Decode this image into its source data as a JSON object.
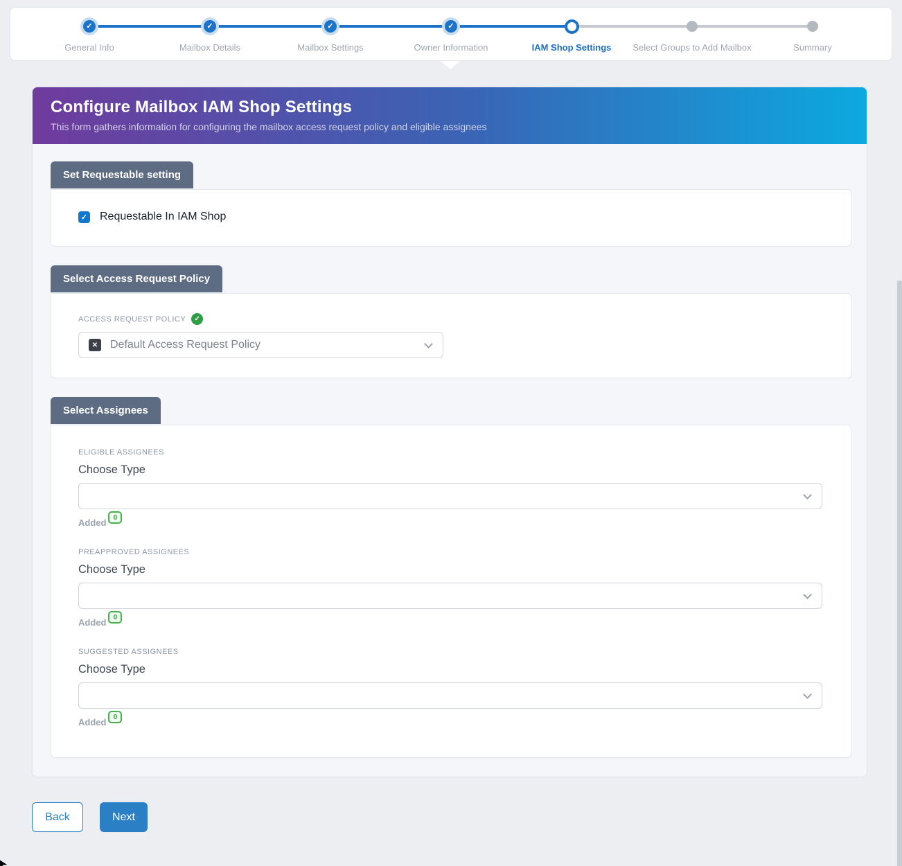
{
  "stepper": {
    "steps": [
      {
        "label": "General Info",
        "state": "completed"
      },
      {
        "label": "Mailbox Details",
        "state": "completed"
      },
      {
        "label": "Mailbox Settings",
        "state": "completed"
      },
      {
        "label": "Owner Information",
        "state": "completed"
      },
      {
        "label": "IAM Shop Settings",
        "state": "active"
      },
      {
        "label": "Select Groups to Add Mailbox",
        "state": "upcoming"
      },
      {
        "label": "Summary",
        "state": "upcoming"
      }
    ],
    "check_glyph": "✓"
  },
  "header": {
    "title": "Configure Mailbox IAM Shop Settings",
    "subtitle": "This form gathers information for configuring the mailbox access request policy and eligible assignees"
  },
  "sections": {
    "requestable": {
      "tab": "Set Requestable setting",
      "checkbox_label": "Requestable In IAM Shop",
      "checkbox_state": "checked",
      "check_glyph": "✓"
    },
    "policy": {
      "tab": "Select Access Request Policy",
      "field_label": "ACCESS REQUEST POLICY",
      "valid_glyph": "✓",
      "remove_glyph": "✕",
      "selected_value": "Default Access Request Policy"
    },
    "assignees": {
      "tab": "Select Assignees",
      "groups": [
        {
          "label": "ELIGIBLE ASSIGNEES",
          "choose_label": "Choose Type",
          "added_label": "Added",
          "added_count": "0"
        },
        {
          "label": "PREAPPROVED ASSIGNEES",
          "choose_label": "Choose Type",
          "added_label": "Added",
          "added_count": "0"
        },
        {
          "label": "SUGGESTED ASSIGNEES",
          "choose_label": "Choose Type",
          "added_label": "Added",
          "added_count": "0"
        }
      ]
    }
  },
  "actions": {
    "back": "Back",
    "next": "Next"
  },
  "colors": {
    "primary_blue": "#1b74c8",
    "button_blue": "#2b7fc4",
    "tab_slate": "#5d6c82",
    "hero_gradient": [
      "#6f3b9d",
      "#3a64b5",
      "#0ba9e0"
    ],
    "success_green": "#2e9e44",
    "badge_green": "#44b04e",
    "page_background": "#eceef2"
  }
}
